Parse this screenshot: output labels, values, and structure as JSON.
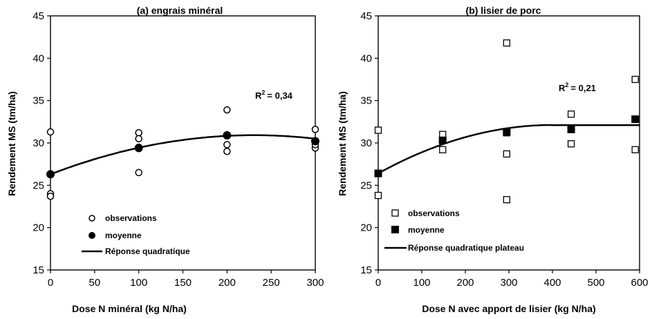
{
  "chart_data": [
    {
      "type": "scatter",
      "title": "(a) engrais minéral",
      "xlabel": "Dose N minéral  (kg N/ha)",
      "ylabel": "Rendement MS (tm/ha)",
      "xlim": [
        0,
        300
      ],
      "ylim": [
        15,
        45
      ],
      "xticks": [
        "0",
        "50",
        "100",
        "150",
        "200",
        "250",
        "300"
      ],
      "yticks": [
        "15",
        "20",
        "25",
        "30",
        "35",
        "40",
        "45"
      ],
      "annotation": {
        "text": "= 0,34",
        "prefix": "R",
        "sup": "2"
      },
      "legend": [
        "observations",
        "moyenne",
        "Réponse quadratique"
      ],
      "series": [
        {
          "name": "observations",
          "marker": "circle-open",
          "x": [
            0,
            0,
            0,
            0,
            100,
            100,
            100,
            100,
            200,
            200,
            200,
            200,
            300,
            300,
            300,
            300
          ],
          "y": [
            31.3,
            26.3,
            24.0,
            23.7,
            31.2,
            30.5,
            29.5,
            26.5,
            33.9,
            29.8,
            29.0,
            30.9,
            31.6,
            29.4,
            29.8,
            30.2
          ]
        },
        {
          "name": "moyenne",
          "marker": "circle-filled",
          "x": [
            0,
            100,
            200,
            300
          ],
          "y": [
            26.3,
            29.4,
            30.9,
            30.2
          ]
        },
        {
          "name": "Réponse quadratique",
          "line": "quadratic",
          "coef": [
            26.3,
            0.04,
            -8.67e-05
          ]
        }
      ]
    },
    {
      "type": "scatter",
      "title": "(b) lisier de porc",
      "xlabel": "Dose N avec apport de lisier (kg N/ha)",
      "ylabel": "Rendement MS (tm/ha)",
      "xlim": [
        0,
        600
      ],
      "ylim": [
        15,
        45
      ],
      "xticks": [
        "0",
        "100",
        "200",
        "300",
        "400",
        "500",
        "600"
      ],
      "yticks": [
        "15",
        "20",
        "25",
        "30",
        "35",
        "40",
        "45"
      ],
      "annotation": {
        "text": "= 0,21",
        "prefix": "R",
        "sup": "2"
      },
      "legend": [
        "observations",
        "moyenne",
        "Réponse quadratique  plateau"
      ],
      "series": [
        {
          "name": "observations",
          "marker": "square-open",
          "x": [
            0,
            0,
            148,
            148,
            295,
            295,
            295,
            295,
            443,
            443,
            590,
            590
          ],
          "y": [
            31.5,
            23.8,
            31.0,
            29.2,
            41.8,
            28.7,
            23.3,
            31.2,
            33.4,
            29.9,
            37.5,
            29.2
          ]
        },
        {
          "name": "moyenne",
          "marker": "square-filled",
          "x": [
            0,
            148,
            295,
            443,
            590
          ],
          "y": [
            26.4,
            30.3,
            31.3,
            31.6,
            32.8
          ]
        },
        {
          "name": "Réponse quadratique  plateau",
          "line": "quadratic-plateau",
          "coef": [
            26.4,
            0.0285,
            -3.55e-05
          ],
          "plateau_x": 400,
          "plateau_y": 32.1
        }
      ]
    }
  ]
}
